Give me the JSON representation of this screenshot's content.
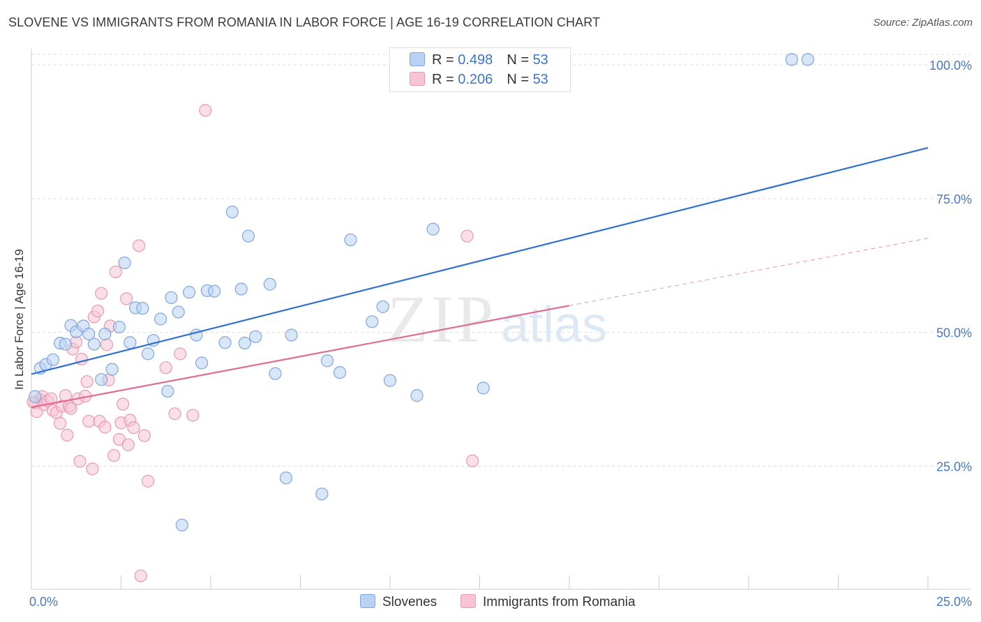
{
  "title": "SLOVENE VS IMMIGRANTS FROM ROMANIA IN LABOR FORCE | AGE 16-19 CORRELATION CHART",
  "source": "Source: ZipAtlas.com",
  "watermark": {
    "zip": "ZIP",
    "atlas": "atlas"
  },
  "legend": {
    "r_label": "R = ",
    "n_label": "N = ",
    "rows": [
      {
        "r": "0.498",
        "n": "53",
        "fill": "#b9d2f3",
        "stroke": "#7ea6e0"
      },
      {
        "r": "0.206",
        "n": "53",
        "fill": "#f8c4d4",
        "stroke": "#e899b2"
      }
    ]
  },
  "chart_data": {
    "type": "scatter",
    "title": "SLOVENE VS IMMIGRANTS FROM ROMANIA IN LABOR FORCE | AGE 16-19 CORRELATION CHART",
    "xlabel": "",
    "ylabel": "In Labor Force | Age 16-19",
    "xlim": [
      0,
      25
    ],
    "ylim": [
      2,
      103
    ],
    "x_ticks": [
      "0.0%",
      "25.0%"
    ],
    "y_ticks": [
      {
        "value": 25,
        "label": "25.0%"
      },
      {
        "value": 50,
        "label": "50.0%"
      },
      {
        "value": 75,
        "label": "75.0%"
      },
      {
        "value": 100,
        "label": "100.0%"
      }
    ],
    "grid": "horizontal dashed",
    "legend_position": "top-center",
    "series": [
      {
        "name": "Slovenes",
        "color": "#7ea6e0",
        "fill": "#b9d2f3",
        "line_color": "#2f6fcf",
        "trend": {
          "x0": 0,
          "y0": 42.2,
          "x1": 25,
          "y1": 84.5
        },
        "points": [
          [
            0.1,
            38.0
          ],
          [
            0.25,
            43.3
          ],
          [
            0.4,
            44.0
          ],
          [
            0.6,
            44.9
          ],
          [
            0.8,
            48.0
          ],
          [
            0.95,
            47.8
          ],
          [
            1.1,
            51.3
          ],
          [
            1.25,
            50.1
          ],
          [
            1.45,
            51.2
          ],
          [
            1.6,
            49.7
          ],
          [
            1.75,
            47.8
          ],
          [
            1.95,
            41.2
          ],
          [
            2.05,
            49.7
          ],
          [
            2.25,
            43.1
          ],
          [
            2.45,
            51.0
          ],
          [
            2.6,
            63.0
          ],
          [
            2.75,
            48.1
          ],
          [
            2.9,
            54.6
          ],
          [
            3.1,
            54.5
          ],
          [
            3.25,
            46.0
          ],
          [
            3.4,
            48.5
          ],
          [
            3.6,
            52.5
          ],
          [
            3.8,
            39.0
          ],
          [
            3.9,
            56.5
          ],
          [
            4.1,
            53.8
          ],
          [
            4.2,
            14.0
          ],
          [
            4.4,
            57.5
          ],
          [
            4.6,
            49.5
          ],
          [
            4.75,
            44.3
          ],
          [
            4.9,
            57.8
          ],
          [
            5.1,
            57.7
          ],
          [
            5.4,
            48.1
          ],
          [
            5.6,
            72.5
          ],
          [
            5.85,
            58.1
          ],
          [
            5.95,
            48.0
          ],
          [
            6.05,
            68.0
          ],
          [
            6.25,
            49.2
          ],
          [
            6.65,
            59.0
          ],
          [
            6.8,
            42.3
          ],
          [
            7.1,
            22.8
          ],
          [
            7.25,
            49.5
          ],
          [
            8.1,
            19.8
          ],
          [
            8.25,
            44.7
          ],
          [
            8.6,
            42.5
          ],
          [
            8.9,
            67.3
          ],
          [
            9.5,
            52.0
          ],
          [
            9.8,
            54.8
          ],
          [
            10.0,
            41.0
          ],
          [
            10.75,
            38.2
          ],
          [
            11.2,
            69.3
          ],
          [
            12.6,
            39.6
          ],
          [
            21.2,
            101.0
          ],
          [
            21.65,
            101.0
          ]
        ]
      },
      {
        "name": "Immigrants from Romania",
        "color": "#e899b2",
        "fill": "#f8c4d4",
        "line_color": "#e06b93",
        "trend": {
          "x0": 0,
          "y0": 36.0,
          "x1": 15.0,
          "y1": 55.0
        },
        "trend_dashed": {
          "x0": 15.0,
          "y0": 55.0,
          "x1": 25,
          "y1": 67.6
        },
        "points": [
          [
            0.1,
            36.8
          ],
          [
            0.15,
            35.2
          ],
          [
            0.25,
            37.4
          ],
          [
            0.3,
            38.0
          ],
          [
            0.35,
            36.5
          ],
          [
            0.45,
            37.2
          ],
          [
            0.55,
            37.6
          ],
          [
            0.6,
            35.4
          ],
          [
            0.7,
            35.0
          ],
          [
            0.8,
            33.0
          ],
          [
            0.85,
            36.2
          ],
          [
            0.95,
            38.2
          ],
          [
            1.0,
            30.8
          ],
          [
            1.05,
            36.2
          ],
          [
            1.1,
            35.8
          ],
          [
            1.15,
            46.9
          ],
          [
            1.25,
            48.2
          ],
          [
            1.3,
            37.6
          ],
          [
            1.35,
            25.9
          ],
          [
            1.4,
            45.0
          ],
          [
            1.5,
            38.1
          ],
          [
            1.55,
            40.8
          ],
          [
            1.6,
            33.4
          ],
          [
            1.7,
            24.5
          ],
          [
            1.75,
            52.9
          ],
          [
            1.85,
            54.0
          ],
          [
            1.9,
            33.4
          ],
          [
            1.95,
            57.3
          ],
          [
            2.05,
            32.3
          ],
          [
            2.1,
            47.7
          ],
          [
            2.15,
            41.1
          ],
          [
            2.2,
            51.2
          ],
          [
            2.3,
            27.0
          ],
          [
            2.35,
            61.3
          ],
          [
            2.45,
            30.0
          ],
          [
            2.5,
            33.1
          ],
          [
            2.55,
            36.6
          ],
          [
            2.65,
            56.3
          ],
          [
            2.7,
            29.0
          ],
          [
            2.75,
            33.6
          ],
          [
            2.85,
            32.2
          ],
          [
            3.0,
            66.2
          ],
          [
            3.05,
            4.5
          ],
          [
            3.15,
            30.7
          ],
          [
            3.25,
            22.2
          ],
          [
            3.75,
            43.4
          ],
          [
            4.0,
            34.8
          ],
          [
            4.15,
            46.0
          ],
          [
            4.5,
            34.5
          ],
          [
            4.85,
            91.5
          ],
          [
            12.15,
            68.0
          ],
          [
            12.3,
            26.0
          ],
          [
            0.05,
            37.0
          ]
        ]
      }
    ]
  },
  "bottom_legend": [
    "Slovenes",
    "Immigrants from Romania"
  ]
}
